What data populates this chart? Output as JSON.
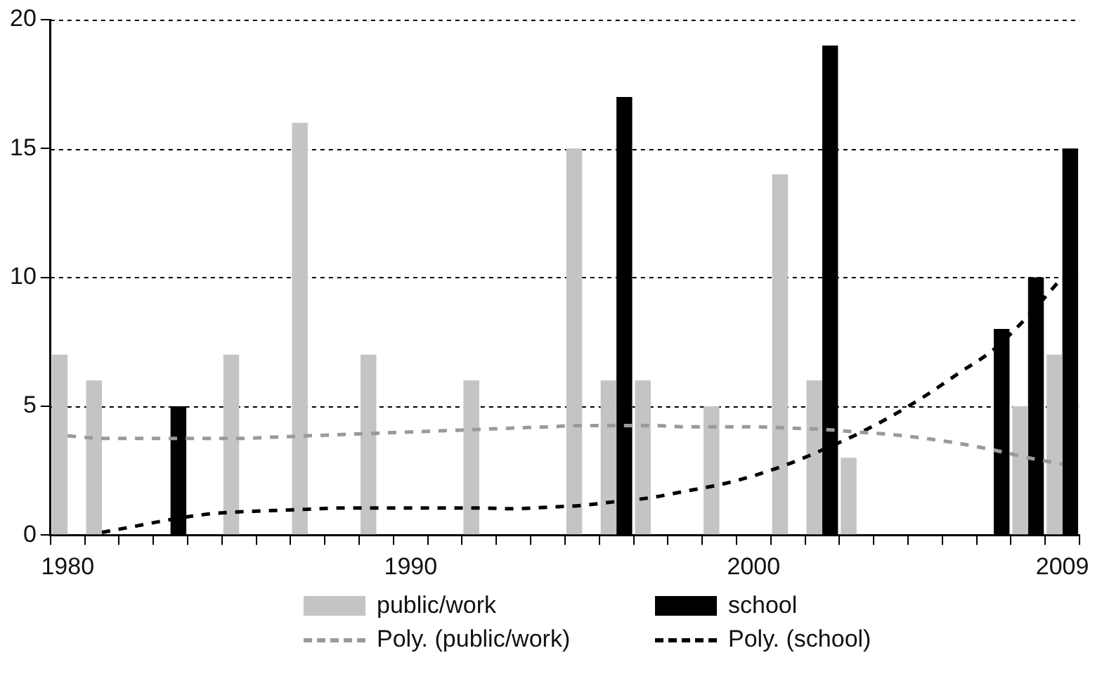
{
  "chart_data": {
    "type": "bar",
    "categories": [
      "1980",
      null,
      null,
      null,
      null,
      null,
      null,
      null,
      null,
      null,
      "1990",
      null,
      null,
      null,
      null,
      null,
      null,
      null,
      null,
      null,
      "2000",
      null,
      null,
      null,
      null,
      null,
      null,
      null,
      null,
      "2009"
    ],
    "series": [
      {
        "name": "public/work",
        "color": "#c4c4c4",
        "values": [
          7,
          6,
          null,
          null,
          null,
          7,
          null,
          16,
          null,
          7,
          null,
          null,
          6,
          null,
          null,
          15,
          6,
          6,
          null,
          5,
          null,
          14,
          6,
          3,
          null,
          null,
          null,
          null,
          5,
          7
        ]
      },
      {
        "name": "school",
        "color": "#000000",
        "values": [
          null,
          null,
          null,
          5,
          null,
          null,
          null,
          null,
          null,
          null,
          null,
          null,
          null,
          null,
          null,
          null,
          17,
          null,
          null,
          null,
          null,
          null,
          19,
          null,
          null,
          null,
          null,
          8,
          10,
          15
        ]
      },
      {
        "name": "Poly. (public/work)",
        "type": "line",
        "line_style": "dashed",
        "color": "#9a9a9a",
        "values": [
          3.85,
          3.75,
          3.75,
          3.75,
          3.75,
          3.75,
          3.8,
          3.85,
          3.9,
          3.95,
          4.0,
          4.05,
          4.1,
          4.15,
          4.2,
          4.25,
          4.25,
          4.25,
          4.2,
          4.2,
          4.2,
          4.15,
          4.1,
          4.0,
          3.9,
          3.75,
          3.55,
          3.3,
          3.0,
          2.75
        ]
      },
      {
        "name": "Poly. (school)",
        "type": "line",
        "line_style": "dashed",
        "color": "#000000",
        "values": [
          null,
          0.1,
          0.35,
          0.6,
          0.8,
          0.9,
          0.95,
          1.0,
          1.05,
          1.05,
          1.05,
          1.05,
          1.05,
          1.02,
          1.08,
          1.15,
          1.3,
          1.45,
          1.7,
          1.95,
          2.3,
          2.75,
          3.3,
          3.9,
          4.6,
          5.4,
          6.3,
          7.2,
          8.5,
          10.0
        ]
      }
    ],
    "ylim": [
      0,
      20
    ],
    "yticks": [
      0,
      5,
      10,
      15,
      20
    ],
    "grid": "y",
    "legend": "bottom",
    "marker": "none"
  }
}
